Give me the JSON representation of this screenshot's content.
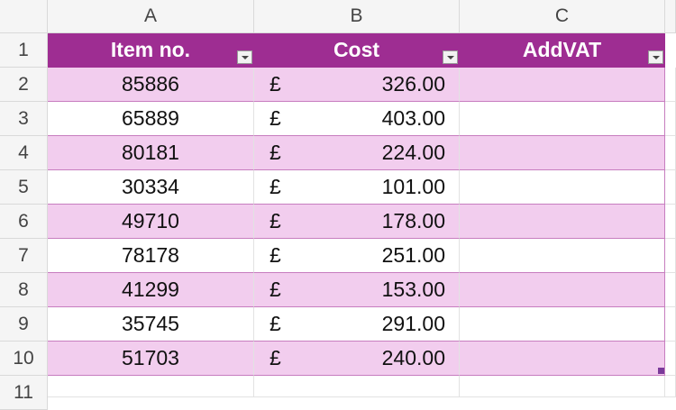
{
  "column_headers": [
    "A",
    "B",
    "C"
  ],
  "row_numbers": [
    "1",
    "2",
    "3",
    "4",
    "5",
    "6",
    "7",
    "8",
    "9",
    "10",
    "11"
  ],
  "table": {
    "headers": [
      "Item no.",
      "Cost",
      "AddVAT"
    ],
    "rows": [
      {
        "item_no": "85886",
        "currency": "£",
        "cost": "326.00"
      },
      {
        "item_no": "65889",
        "currency": "£",
        "cost": "403.00"
      },
      {
        "item_no": "80181",
        "currency": "£",
        "cost": "224.00"
      },
      {
        "item_no": "30334",
        "currency": "£",
        "cost": "101.00"
      },
      {
        "item_no": "49710",
        "currency": "£",
        "cost": "178.00"
      },
      {
        "item_no": "78178",
        "currency": "£",
        "cost": "251.00"
      },
      {
        "item_no": "41299",
        "currency": "£",
        "cost": "153.00"
      },
      {
        "item_no": "35745",
        "currency": "£",
        "cost": "291.00"
      },
      {
        "item_no": "51703",
        "currency": "£",
        "cost": "240.00"
      }
    ]
  }
}
